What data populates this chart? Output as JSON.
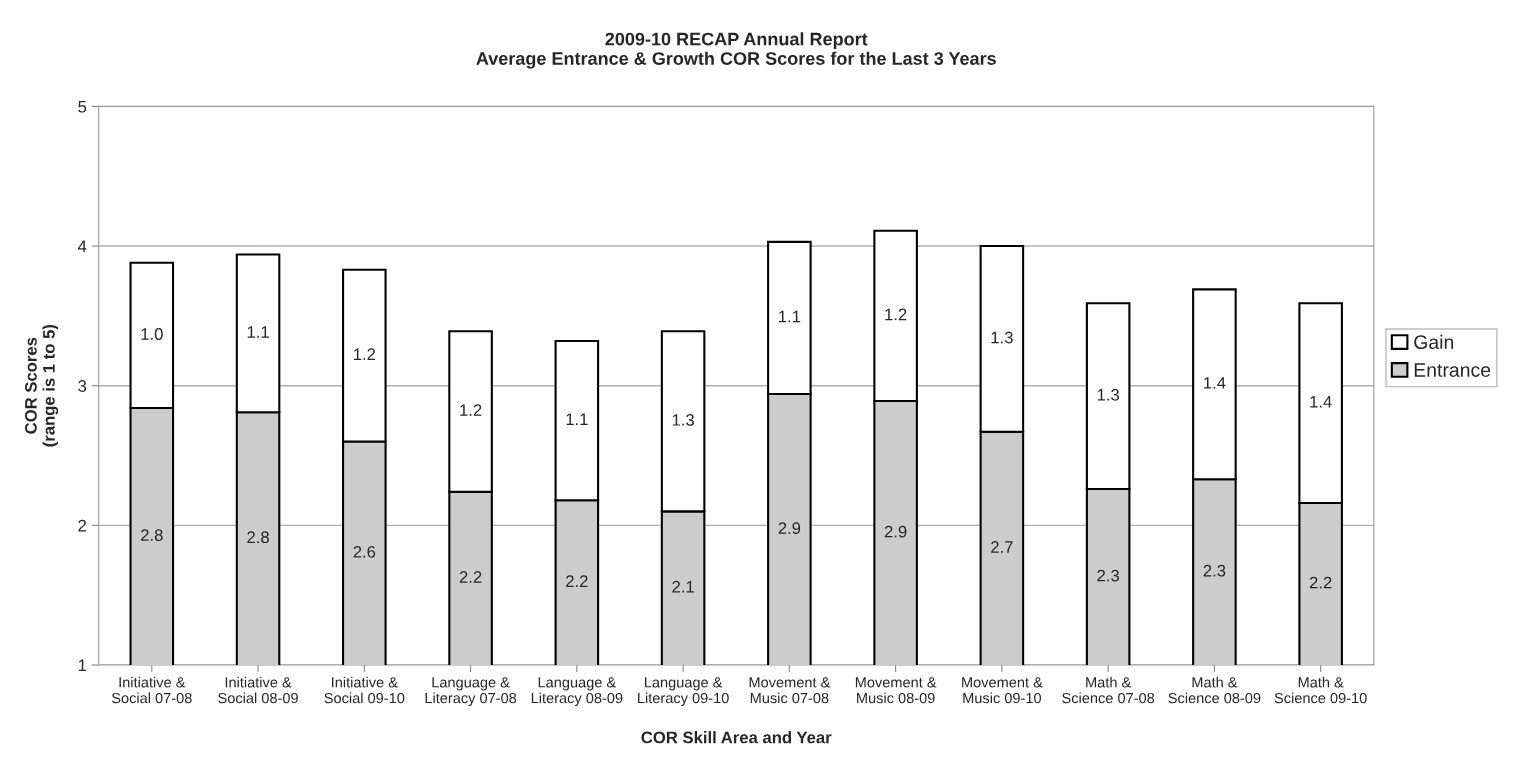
{
  "chart_data": {
    "type": "bar",
    "title": "2009-10 RECAP Annual Report\nAverage Entrance & Growth COR Scores for the Last 3 Years",
    "xlabel": "COR Skill Area and Year",
    "ylabel": "COR Scores\n(range is 1 to 5)",
    "categories": [
      "Initiative &\nSocial 07-08",
      "Initiative &\nSocial 08-09",
      "Initiative &\nSocial 09-10",
      "Language &\nLiteracy 07-08",
      "Language &\nLiteracy 08-09",
      "Language &\nLiteracy 09-10",
      "Movement &\nMusic 07-08",
      "Movement &\nMusic 08-09",
      "Movement &\nMusic 09-10",
      "Math &\nScience 07-08",
      "Math &\nScience 08-09",
      "Math &\nScience 09-10"
    ],
    "stacked": true,
    "series": [
      {
        "name": "Entrance",
        "color": "#cccccc",
        "values": [
          2.84,
          2.81,
          2.6,
          2.24,
          2.18,
          2.1,
          2.94,
          2.89,
          2.67,
          2.26,
          2.33,
          2.16
        ],
        "value_labels": [
          "2.8",
          "2.8",
          "2.6",
          "2.2",
          "2.2",
          "2.1",
          "2.9",
          "2.9",
          "2.7",
          "2.3",
          "2.3",
          "2.2"
        ]
      },
      {
        "name": "Gain",
        "color": "#ffffff",
        "values": [
          1.04,
          1.13,
          1.23,
          1.15,
          1.14,
          1.29,
          1.09,
          1.22,
          1.33,
          1.33,
          1.36,
          1.43
        ],
        "value_labels": [
          "1.0",
          "1.1",
          "1.2",
          "1.2",
          "1.1",
          "1.3",
          "1.1",
          "1.2",
          "1.3",
          "1.3",
          "1.4",
          "1.4"
        ]
      }
    ],
    "ylim": [
      1,
      5
    ],
    "yticks": [
      1,
      2,
      3,
      4,
      5
    ],
    "grid": "y",
    "legend": "right"
  }
}
